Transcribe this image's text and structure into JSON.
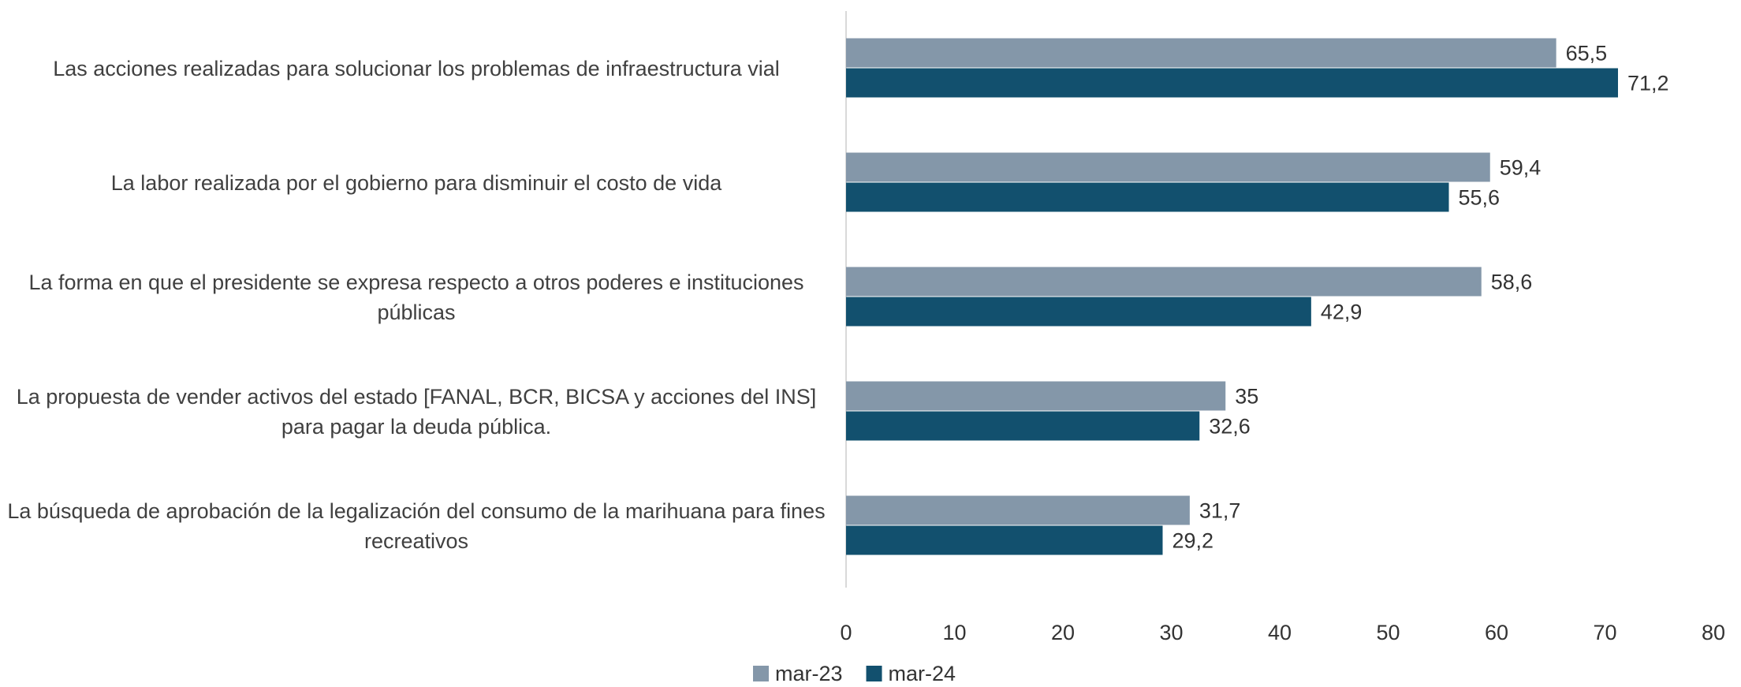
{
  "chart_data": {
    "type": "barh",
    "categories": [
      "Las acciones realizadas para solucionar los problemas de infraestructura vial",
      "La labor realizada por el gobierno para disminuir el costo de vida",
      "La forma en que el presidente se expresa respecto a otros poderes e instituciones públicas",
      "La propuesta de vender activos del estado [FANAL, BCR, BICSA y acciones del INS] para pagar la deuda pública.",
      "La búsqueda de aprobación de la legalización del consumo de la marihuana para fines recreativos"
    ],
    "series": [
      {
        "name": "mar-23",
        "color": "#8497a9",
        "values": [
          65.5,
          59.4,
          58.6,
          35,
          31.7
        ],
        "value_labels": [
          "65,5",
          "59,4",
          "58,6",
          "35",
          "31,7"
        ]
      },
      {
        "name": "mar-24",
        "color": "#12506e",
        "values": [
          71.2,
          55.6,
          42.9,
          32.6,
          29.2
        ],
        "value_labels": [
          "71,2",
          "55,6",
          "42,9",
          "32,6",
          "29,2"
        ]
      }
    ],
    "xlim": [
      0,
      80
    ],
    "xticks": [
      0,
      10,
      20,
      30,
      40,
      50,
      60,
      70,
      80
    ],
    "legend": "bottom"
  }
}
